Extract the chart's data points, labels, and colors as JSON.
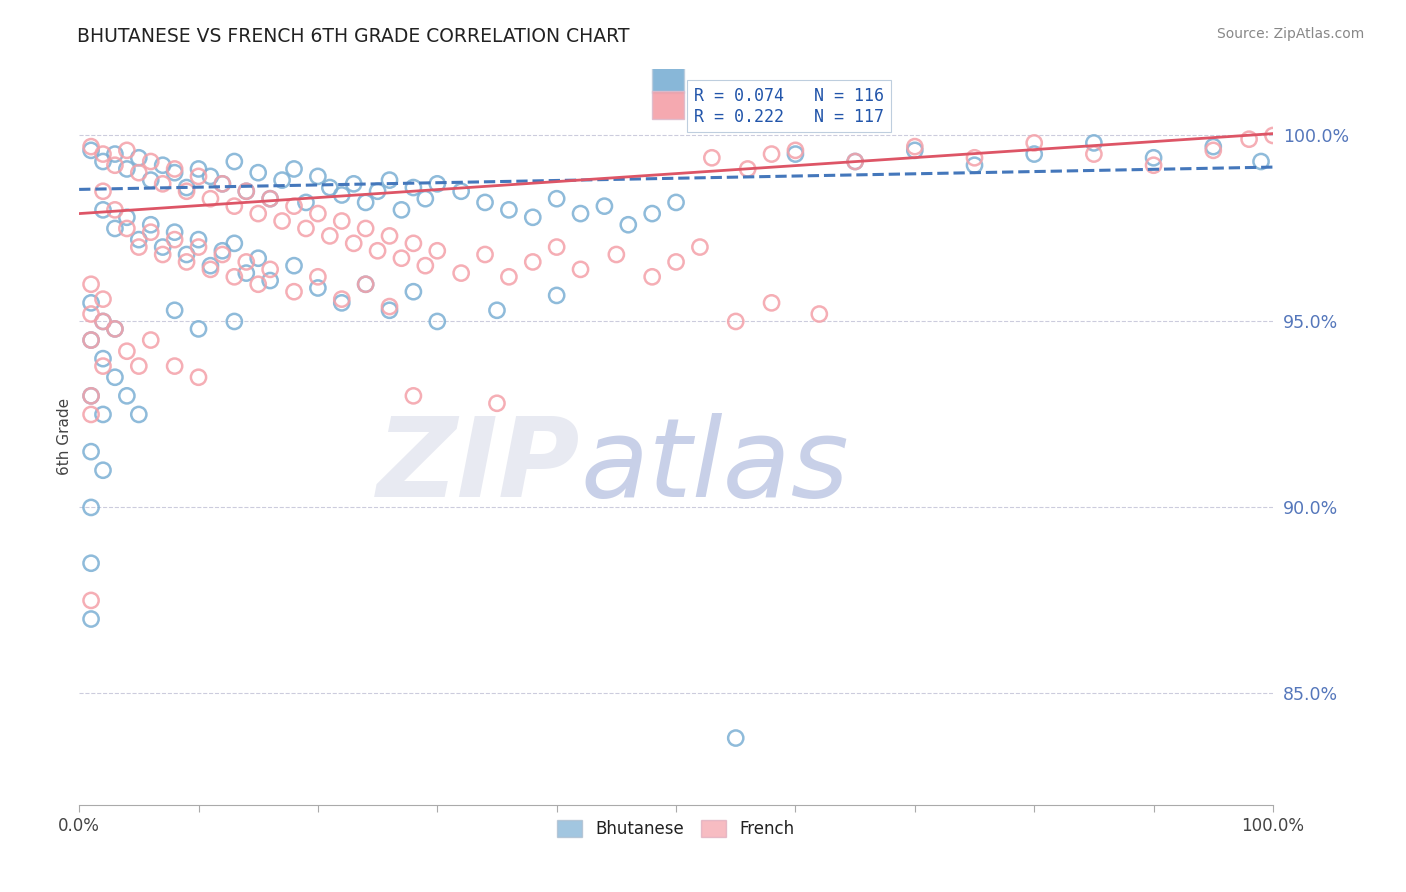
{
  "title": "BHUTANESE VS FRENCH 6TH GRADE CORRELATION CHART",
  "source": "Source: ZipAtlas.com",
  "ylabel": "6th Grade",
  "yticks": [
    85.0,
    90.0,
    95.0,
    100.0
  ],
  "ytick_labels": [
    "85.0%",
    "90.0%",
    "95.0%",
    "100.0%"
  ],
  "xlim": [
    0.0,
    100.0
  ],
  "ylim": [
    82.0,
    101.8
  ],
  "blue_color": "#7BAFD4",
  "pink_color": "#F4A0A8",
  "blue_edge": "#5599CC",
  "pink_edge": "#E07080",
  "blue_R": 0.074,
  "blue_N": 116,
  "pink_R": 0.222,
  "pink_N": 117,
  "blue_line_start_x": 0.0,
  "blue_line_start_y": 98.55,
  "blue_line_end_x": 100.0,
  "blue_line_end_y": 99.15,
  "pink_line_start_x": 0.0,
  "pink_line_start_y": 97.9,
  "pink_line_end_x": 100.0,
  "pink_line_end_y": 100.05,
  "watermark_zip": "ZIP",
  "watermark_atlas": "atlas",
  "legend_label_blue": "Bhutanese",
  "legend_label_pink": "French",
  "dot_size": 120,
  "blue_dots": [
    [
      1,
      99.6
    ],
    [
      2,
      99.3
    ],
    [
      3,
      99.5
    ],
    [
      4,
      99.1
    ],
    [
      5,
      99.4
    ],
    [
      6,
      98.8
    ],
    [
      7,
      99.2
    ],
    [
      8,
      99.0
    ],
    [
      9,
      98.6
    ],
    [
      10,
      99.1
    ],
    [
      11,
      98.9
    ],
    [
      12,
      98.7
    ],
    [
      13,
      99.3
    ],
    [
      14,
      98.5
    ],
    [
      15,
      99.0
    ],
    [
      16,
      98.3
    ],
    [
      17,
      98.8
    ],
    [
      18,
      99.1
    ],
    [
      19,
      98.2
    ],
    [
      20,
      98.9
    ],
    [
      21,
      98.6
    ],
    [
      22,
      98.4
    ],
    [
      23,
      98.7
    ],
    [
      24,
      98.2
    ],
    [
      25,
      98.5
    ],
    [
      26,
      98.8
    ],
    [
      27,
      98.0
    ],
    [
      28,
      98.6
    ],
    [
      29,
      98.3
    ],
    [
      30,
      98.7
    ],
    [
      32,
      98.5
    ],
    [
      34,
      98.2
    ],
    [
      36,
      98.0
    ],
    [
      38,
      97.8
    ],
    [
      40,
      98.3
    ],
    [
      42,
      97.9
    ],
    [
      44,
      98.1
    ],
    [
      46,
      97.6
    ],
    [
      48,
      97.9
    ],
    [
      50,
      98.2
    ],
    [
      2,
      98.0
    ],
    [
      3,
      97.5
    ],
    [
      4,
      97.8
    ],
    [
      5,
      97.2
    ],
    [
      6,
      97.6
    ],
    [
      7,
      97.0
    ],
    [
      8,
      97.4
    ],
    [
      9,
      96.8
    ],
    [
      10,
      97.2
    ],
    [
      11,
      96.5
    ],
    [
      12,
      96.9
    ],
    [
      13,
      97.1
    ],
    [
      14,
      96.3
    ],
    [
      15,
      96.7
    ],
    [
      16,
      96.1
    ],
    [
      18,
      96.5
    ],
    [
      20,
      95.9
    ],
    [
      22,
      95.5
    ],
    [
      24,
      96.0
    ],
    [
      26,
      95.3
    ],
    [
      28,
      95.8
    ],
    [
      30,
      95.0
    ],
    [
      35,
      95.3
    ],
    [
      40,
      95.7
    ],
    [
      1,
      94.5
    ],
    [
      2,
      94.0
    ],
    [
      3,
      93.5
    ],
    [
      4,
      93.0
    ],
    [
      5,
      92.5
    ],
    [
      1,
      95.5
    ],
    [
      2,
      95.0
    ],
    [
      3,
      94.8
    ],
    [
      1,
      93.0
    ],
    [
      2,
      92.5
    ],
    [
      1,
      91.5
    ],
    [
      2,
      91.0
    ],
    [
      1,
      90.0
    ],
    [
      1,
      88.5
    ],
    [
      1,
      87.0
    ],
    [
      8,
      95.3
    ],
    [
      10,
      94.8
    ],
    [
      13,
      95.0
    ],
    [
      55,
      83.8
    ],
    [
      60,
      99.5
    ],
    [
      65,
      99.3
    ],
    [
      70,
      99.6
    ],
    [
      75,
      99.2
    ],
    [
      80,
      99.5
    ],
    [
      85,
      99.8
    ],
    [
      90,
      99.4
    ],
    [
      95,
      99.7
    ],
    [
      99,
      99.3
    ]
  ],
  "pink_dots": [
    [
      1,
      99.7
    ],
    [
      2,
      99.5
    ],
    [
      3,
      99.2
    ],
    [
      4,
      99.6
    ],
    [
      5,
      99.0
    ],
    [
      6,
      99.3
    ],
    [
      7,
      98.7
    ],
    [
      8,
      99.1
    ],
    [
      9,
      98.5
    ],
    [
      10,
      98.9
    ],
    [
      11,
      98.3
    ],
    [
      12,
      98.7
    ],
    [
      13,
      98.1
    ],
    [
      14,
      98.5
    ],
    [
      15,
      97.9
    ],
    [
      16,
      98.3
    ],
    [
      17,
      97.7
    ],
    [
      18,
      98.1
    ],
    [
      19,
      97.5
    ],
    [
      20,
      97.9
    ],
    [
      21,
      97.3
    ],
    [
      22,
      97.7
    ],
    [
      23,
      97.1
    ],
    [
      24,
      97.5
    ],
    [
      25,
      96.9
    ],
    [
      26,
      97.3
    ],
    [
      27,
      96.7
    ],
    [
      28,
      97.1
    ],
    [
      29,
      96.5
    ],
    [
      30,
      96.9
    ],
    [
      32,
      96.3
    ],
    [
      34,
      96.8
    ],
    [
      36,
      96.2
    ],
    [
      38,
      96.6
    ],
    [
      40,
      97.0
    ],
    [
      42,
      96.4
    ],
    [
      45,
      96.8
    ],
    [
      48,
      96.2
    ],
    [
      50,
      96.6
    ],
    [
      52,
      97.0
    ],
    [
      2,
      98.5
    ],
    [
      3,
      98.0
    ],
    [
      4,
      97.5
    ],
    [
      5,
      97.0
    ],
    [
      6,
      97.4
    ],
    [
      7,
      96.8
    ],
    [
      8,
      97.2
    ],
    [
      9,
      96.6
    ],
    [
      10,
      97.0
    ],
    [
      11,
      96.4
    ],
    [
      12,
      96.8
    ],
    [
      13,
      96.2
    ],
    [
      14,
      96.6
    ],
    [
      15,
      96.0
    ],
    [
      16,
      96.4
    ],
    [
      18,
      95.8
    ],
    [
      20,
      96.2
    ],
    [
      22,
      95.6
    ],
    [
      24,
      96.0
    ],
    [
      26,
      95.4
    ],
    [
      1,
      95.2
    ],
    [
      2,
      95.0
    ],
    [
      3,
      94.8
    ],
    [
      4,
      94.2
    ],
    [
      5,
      93.8
    ],
    [
      1,
      96.0
    ],
    [
      2,
      95.6
    ],
    [
      6,
      94.5
    ],
    [
      8,
      93.8
    ],
    [
      10,
      93.5
    ],
    [
      1,
      94.5
    ],
    [
      2,
      93.8
    ],
    [
      1,
      93.0
    ],
    [
      1,
      92.5
    ],
    [
      1,
      87.5
    ],
    [
      28,
      93.0
    ],
    [
      35,
      92.8
    ],
    [
      55,
      95.0
    ],
    [
      58,
      95.5
    ],
    [
      62,
      95.2
    ],
    [
      60,
      99.6
    ],
    [
      65,
      99.3
    ],
    [
      70,
      99.7
    ],
    [
      75,
      99.4
    ],
    [
      80,
      99.8
    ],
    [
      85,
      99.5
    ],
    [
      90,
      99.2
    ],
    [
      95,
      99.6
    ],
    [
      98,
      99.9
    ],
    [
      100,
      100.0
    ],
    [
      53,
      99.4
    ],
    [
      56,
      99.1
    ],
    [
      58,
      99.5
    ]
  ]
}
